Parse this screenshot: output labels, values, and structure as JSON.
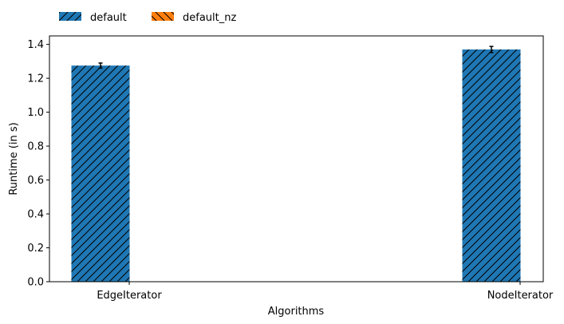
{
  "chart_data": {
    "type": "bar",
    "title": "",
    "xlabel": "Algorithms",
    "ylabel": "Runtime (in s)",
    "categories": [
      "EdgeIterator",
      "NodeIterator"
    ],
    "series": [
      {
        "name": "default",
        "values": [
          1.275,
          1.37
        ],
        "errors": [
          0.015,
          0.018
        ],
        "color": "#1f77b4",
        "hatch": "forward-diagonal"
      },
      {
        "name": "default_nz",
        "values": [
          null,
          null
        ],
        "errors": [
          null,
          null
        ],
        "color": "#ff7f0e",
        "hatch": "back-diagonal"
      }
    ],
    "ylim": [
      0,
      1.45
    ],
    "yticks": [
      0.0,
      0.2,
      0.4,
      0.6,
      0.8,
      1.0,
      1.2,
      1.4
    ],
    "ytick_labels": [
      "0.0",
      "0.2",
      "0.4",
      "0.6",
      "0.8",
      "1.0",
      "1.2",
      "1.4"
    ],
    "grid": false,
    "legend": {
      "placement": "top-left, above plot",
      "entries": [
        "default",
        "default_nz"
      ]
    }
  }
}
